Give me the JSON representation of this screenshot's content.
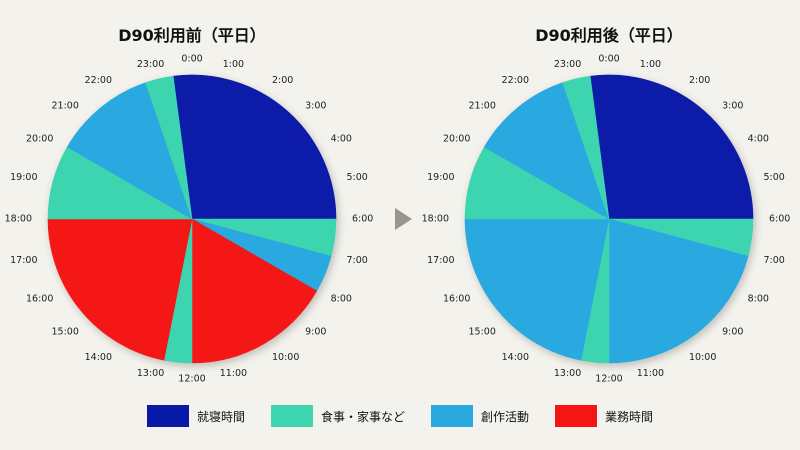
{
  "chart_data": [
    {
      "type": "pie",
      "title": "D90利用前（平日）",
      "clock_labels": [
        "0:00",
        "1:00",
        "2:00",
        "3:00",
        "4:00",
        "5:00",
        "6:00",
        "7:00",
        "8:00",
        "9:00",
        "10:00",
        "11:00",
        "12:00",
        "13:00",
        "14:00",
        "15:00",
        "16:00",
        "17:00",
        "18:00",
        "19:00",
        "20:00",
        "21:00",
        "22:00",
        "23:00"
      ],
      "segments": [
        {
          "category": "就寝時間",
          "start_hour": 23.5,
          "end_hour": 6.0
        },
        {
          "category": "食事・家事など",
          "start_hour": 6.0,
          "end_hour": 7.0
        },
        {
          "category": "創作活動",
          "start_hour": 7.0,
          "end_hour": 8.0
        },
        {
          "category": "業務時間",
          "start_hour": 8.0,
          "end_hour": 12.0
        },
        {
          "category": "食事・家事など",
          "start_hour": 12.0,
          "end_hour": 12.75
        },
        {
          "category": "業務時間",
          "start_hour": 12.75,
          "end_hour": 18.0
        },
        {
          "category": "食事・家事など",
          "start_hour": 18.0,
          "end_hour": 20.0
        },
        {
          "category": "創作活動",
          "start_hour": 20.0,
          "end_hour": 22.75
        },
        {
          "category": "食事・家事など",
          "start_hour": 22.75,
          "end_hour": 23.5
        }
      ]
    },
    {
      "type": "pie",
      "title": "D90利用後（平日）",
      "clock_labels": [
        "0:00",
        "1:00",
        "2:00",
        "3:00",
        "4:00",
        "5:00",
        "6:00",
        "7:00",
        "8:00",
        "9:00",
        "10:00",
        "11:00",
        "12:00",
        "13:00",
        "14:00",
        "15:00",
        "16:00",
        "17:00",
        "18:00",
        "19:00",
        "20:00",
        "21:00",
        "22:00",
        "23:00"
      ],
      "segments": [
        {
          "category": "就寝時間",
          "start_hour": 23.5,
          "end_hour": 6.0
        },
        {
          "category": "食事・家事など",
          "start_hour": 6.0,
          "end_hour": 7.0
        },
        {
          "category": "創作活動",
          "start_hour": 7.0,
          "end_hour": 12.0
        },
        {
          "category": "食事・家事など",
          "start_hour": 12.0,
          "end_hour": 12.75
        },
        {
          "category": "創作活動",
          "start_hour": 12.75,
          "end_hour": 18.0
        },
        {
          "category": "食事・家事など",
          "start_hour": 18.0,
          "end_hour": 20.0
        },
        {
          "category": "創作活動",
          "start_hour": 20.0,
          "end_hour": 22.75
        },
        {
          "category": "食事・家事など",
          "start_hour": 22.75,
          "end_hour": 23.5
        }
      ]
    }
  ],
  "legend": [
    {
      "label": "就寝時間",
      "color": "#0a1aa8"
    },
    {
      "label": "食事・家事など",
      "color": "#3dd4b0"
    },
    {
      "label": "創作活動",
      "color": "#2ba8e0"
    },
    {
      "label": "業務時間",
      "color": "#f51515"
    }
  ],
  "arrow_icon": "play-triangle-icon"
}
